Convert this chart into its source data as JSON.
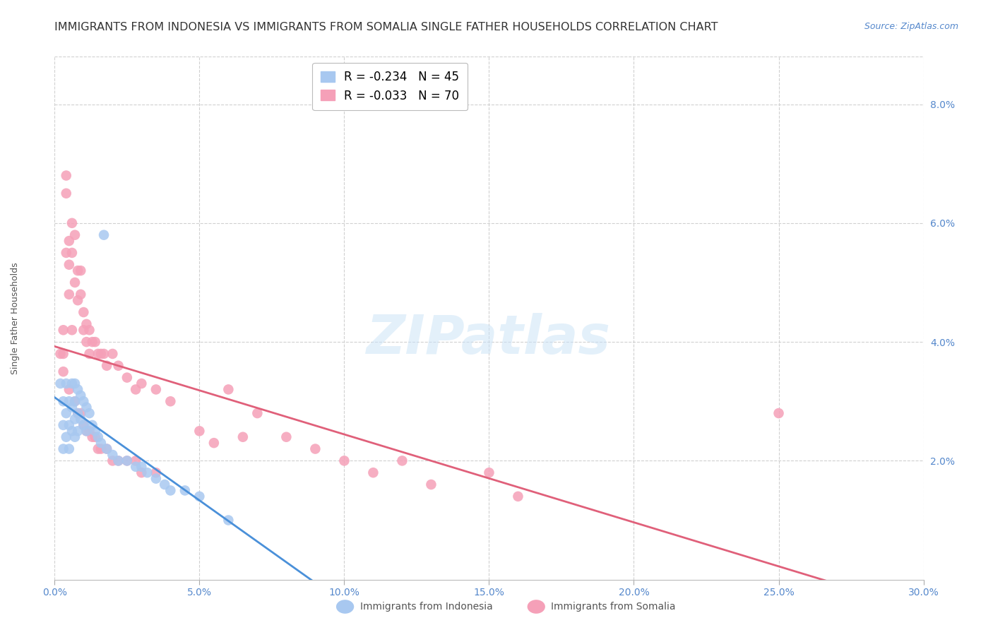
{
  "title": "IMMIGRANTS FROM INDONESIA VS IMMIGRANTS FROM SOMALIA SINGLE FATHER HOUSEHOLDS CORRELATION CHART",
  "source": "Source: ZipAtlas.com",
  "ylabel": "Single Father Households",
  "xlim": [
    0.0,
    0.3
  ],
  "ylim": [
    0.0,
    0.088
  ],
  "xtick_labels": [
    "0.0%",
    "5.0%",
    "10.0%",
    "15.0%",
    "20.0%",
    "25.0%",
    "30.0%"
  ],
  "xtick_vals": [
    0.0,
    0.05,
    0.1,
    0.15,
    0.2,
    0.25,
    0.3
  ],
  "ytick_labels": [
    "2.0%",
    "4.0%",
    "6.0%",
    "8.0%"
  ],
  "ytick_vals": [
    0.02,
    0.04,
    0.06,
    0.08
  ],
  "legend_label1": "R = -0.234   N = 45",
  "legend_label2": "R = -0.033   N = 70",
  "watermark": "ZIPatlas",
  "indonesia_color": "#a8c8f0",
  "somalia_color": "#f5a0b8",
  "indonesia_line_color": "#4a90d9",
  "somalia_line_color": "#e0607a",
  "indonesia_scatter_x": [
    0.002,
    0.003,
    0.003,
    0.003,
    0.004,
    0.004,
    0.004,
    0.005,
    0.005,
    0.005,
    0.006,
    0.006,
    0.006,
    0.007,
    0.007,
    0.007,
    0.007,
    0.008,
    0.008,
    0.008,
    0.009,
    0.009,
    0.01,
    0.01,
    0.011,
    0.011,
    0.012,
    0.013,
    0.014,
    0.015,
    0.016,
    0.017,
    0.018,
    0.02,
    0.022,
    0.025,
    0.028,
    0.03,
    0.032,
    0.035,
    0.038,
    0.04,
    0.045,
    0.05,
    0.06
  ],
  "indonesia_scatter_y": [
    0.033,
    0.03,
    0.026,
    0.022,
    0.033,
    0.028,
    0.024,
    0.03,
    0.026,
    0.022,
    0.033,
    0.029,
    0.025,
    0.033,
    0.03,
    0.027,
    0.024,
    0.032,
    0.028,
    0.025,
    0.031,
    0.027,
    0.03,
    0.026,
    0.029,
    0.025,
    0.028,
    0.026,
    0.025,
    0.024,
    0.023,
    0.058,
    0.022,
    0.021,
    0.02,
    0.02,
    0.019,
    0.019,
    0.018,
    0.017,
    0.016,
    0.015,
    0.015,
    0.014,
    0.01
  ],
  "somalia_scatter_x": [
    0.002,
    0.003,
    0.003,
    0.004,
    0.004,
    0.004,
    0.005,
    0.005,
    0.005,
    0.006,
    0.006,
    0.006,
    0.007,
    0.007,
    0.008,
    0.008,
    0.009,
    0.009,
    0.01,
    0.01,
    0.011,
    0.011,
    0.012,
    0.012,
    0.013,
    0.014,
    0.015,
    0.016,
    0.017,
    0.018,
    0.02,
    0.022,
    0.025,
    0.028,
    0.03,
    0.035,
    0.04,
    0.05,
    0.055,
    0.06,
    0.065,
    0.07,
    0.08,
    0.09,
    0.1,
    0.11,
    0.12,
    0.13,
    0.15,
    0.16,
    0.003,
    0.005,
    0.007,
    0.008,
    0.009,
    0.01,
    0.011,
    0.012,
    0.013,
    0.014,
    0.015,
    0.016,
    0.018,
    0.02,
    0.022,
    0.025,
    0.028,
    0.03,
    0.035,
    0.25
  ],
  "somalia_scatter_y": [
    0.038,
    0.042,
    0.038,
    0.065,
    0.068,
    0.055,
    0.057,
    0.053,
    0.048,
    0.06,
    0.055,
    0.042,
    0.058,
    0.05,
    0.052,
    0.047,
    0.052,
    0.048,
    0.045,
    0.042,
    0.043,
    0.04,
    0.042,
    0.038,
    0.04,
    0.04,
    0.038,
    0.038,
    0.038,
    0.036,
    0.038,
    0.036,
    0.034,
    0.032,
    0.033,
    0.032,
    0.03,
    0.025,
    0.023,
    0.032,
    0.024,
    0.028,
    0.024,
    0.022,
    0.02,
    0.018,
    0.02,
    0.016,
    0.018,
    0.014,
    0.035,
    0.032,
    0.03,
    0.028,
    0.028,
    0.026,
    0.025,
    0.025,
    0.024,
    0.024,
    0.022,
    0.022,
    0.022,
    0.02,
    0.02,
    0.02,
    0.02,
    0.018,
    0.018,
    0.028
  ],
  "background_color": "#ffffff",
  "grid_color": "#d0d0d0",
  "axis_color": "#5588cc",
  "title_color": "#333333",
  "title_fontsize": 11.5,
  "label_fontsize": 9,
  "tick_fontsize": 10,
  "legend_fontsize": 12
}
